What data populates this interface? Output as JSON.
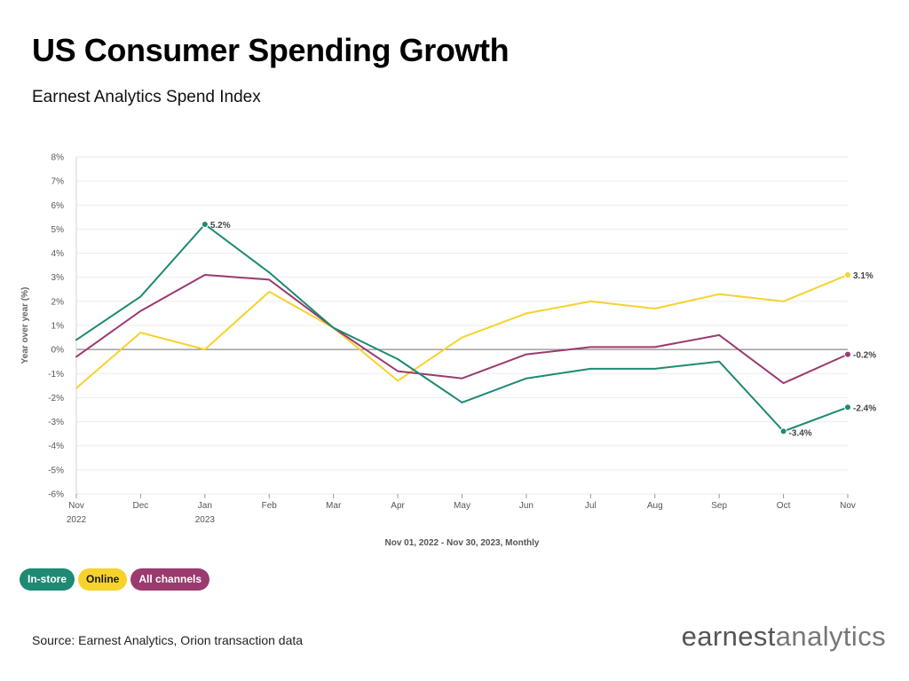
{
  "header": {
    "title": "US Consumer Spending Growth",
    "subtitle": "Earnest Analytics Spend Index"
  },
  "footer": {
    "source": "Source: Earnest Analytics, Orion transaction data",
    "logo_part1": "earnest",
    "logo_part2": "analytics"
  },
  "chart_data": {
    "type": "line",
    "ylabel": "Year over year (%)",
    "xlabel": "Nov 01, 2022 - Nov 30, 2023, Monthly",
    "ylim": [
      -6,
      8
    ],
    "y_ticks": [
      "8%",
      "7%",
      "6%",
      "5%",
      "4%",
      "3%",
      "2%",
      "1%",
      "0%",
      "-1%",
      "-2%",
      "-3%",
      "-4%",
      "-5%",
      "-6%"
    ],
    "categories": [
      "Nov",
      "Dec",
      "Jan",
      "Feb",
      "Mar",
      "Apr",
      "May",
      "Jun",
      "Jul",
      "Aug",
      "Sep",
      "Oct",
      "Nov"
    ],
    "category_sublabels": [
      "2022",
      "",
      "2023",
      "",
      "",
      "",
      "",
      "",
      "",
      "",
      "",
      "",
      ""
    ],
    "grid": true,
    "legend": "bottom-left",
    "series": [
      {
        "name": "In-store",
        "color": "#1e8a73",
        "values": [
          0.4,
          2.2,
          5.2,
          3.2,
          0.9,
          -0.4,
          -2.2,
          -1.2,
          -0.8,
          -0.8,
          -0.5,
          -3.4,
          -2.4
        ],
        "annotations": [
          {
            "index": 2,
            "label": "5.2%"
          },
          {
            "index": 11,
            "label": "-3.4%"
          },
          {
            "index": 12,
            "label": "-2.4%"
          }
        ]
      },
      {
        "name": "Online",
        "color": "#f6d22c",
        "values": [
          -1.6,
          0.7,
          0.0,
          2.4,
          0.9,
          -1.3,
          0.5,
          1.5,
          2.0,
          1.7,
          2.3,
          2.0,
          3.1
        ],
        "annotations": [
          {
            "index": 12,
            "label": "3.1%"
          }
        ]
      },
      {
        "name": "All channels",
        "color": "#9b3a6e",
        "values": [
          -0.3,
          1.6,
          3.1,
          2.9,
          0.9,
          -0.9,
          -1.2,
          -0.2,
          0.1,
          0.1,
          0.6,
          -1.4,
          -0.2
        ],
        "annotations": [
          {
            "index": 12,
            "label": "-0.2%"
          }
        ]
      }
    ]
  }
}
